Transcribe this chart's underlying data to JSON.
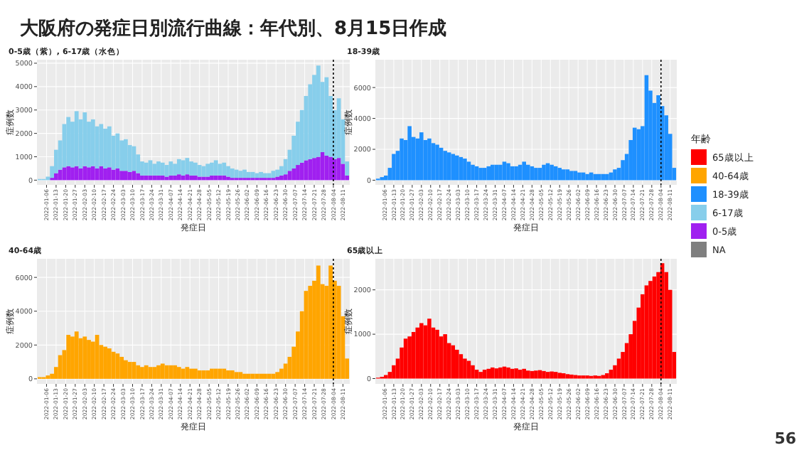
{
  "chart_data": [
    {
      "type": "bar",
      "title": "大阪府の発症日別流行曲線：年代別、8月15日作成",
      "subtitle": "0-5歳（紫）, 6-17歳（水色）",
      "xlabel": "発症日",
      "ylabel": "症例数",
      "grid": true,
      "x": [
        "2022-01-01",
        "2022-01-04",
        "2022-01-07",
        "2022-01-10",
        "2022-01-13",
        "2022-01-16",
        "2022-01-19",
        "2022-01-22",
        "2022-01-25",
        "2022-01-28",
        "2022-01-31",
        "2022-02-03",
        "2022-02-06",
        "2022-02-09",
        "2022-02-12",
        "2022-02-15",
        "2022-02-18",
        "2022-02-21",
        "2022-02-24",
        "2022-02-27",
        "2022-03-02",
        "2022-03-05",
        "2022-03-08",
        "2022-03-11",
        "2022-03-14",
        "2022-03-17",
        "2022-03-20",
        "2022-03-23",
        "2022-03-26",
        "2022-03-29",
        "2022-04-01",
        "2022-04-04",
        "2022-04-07",
        "2022-04-10",
        "2022-04-13",
        "2022-04-16",
        "2022-04-19",
        "2022-04-22",
        "2022-04-25",
        "2022-04-28",
        "2022-05-01",
        "2022-05-04",
        "2022-05-07",
        "2022-05-10",
        "2022-05-13",
        "2022-05-16",
        "2022-05-19",
        "2022-05-22",
        "2022-05-25",
        "2022-05-28",
        "2022-05-31",
        "2022-06-03",
        "2022-06-06",
        "2022-06-09",
        "2022-06-12",
        "2022-06-15",
        "2022-06-18",
        "2022-06-21",
        "2022-06-24",
        "2022-06-27",
        "2022-06-30",
        "2022-07-03",
        "2022-07-06",
        "2022-07-09",
        "2022-07-12",
        "2022-07-15",
        "2022-07-18",
        "2022-07-21",
        "2022-07-24",
        "2022-07-27",
        "2022-07-30",
        "2022-08-02",
        "2022-08-05",
        "2022-08-08",
        "2022-08-11",
        "2022-08-14"
      ],
      "xlim": [
        "2021-12-30",
        "2022-08-16"
      ],
      "xticks": [
        "2022-01-06",
        "2022-01-13",
        "2022-01-20",
        "2022-01-27",
        "2022-02-03",
        "2022-02-10",
        "2022-02-17",
        "2022-02-24",
        "2022-03-03",
        "2022-03-10",
        "2022-03-17",
        "2022-03-24",
        "2022-03-31",
        "2022-04-07",
        "2022-04-14",
        "2022-04-21",
        "2022-04-28",
        "2022-05-05",
        "2022-05-12",
        "2022-05-19",
        "2022-05-26",
        "2022-06-02",
        "2022-06-09",
        "2022-06-16",
        "2022-06-23",
        "2022-06-30",
        "2022-07-07",
        "2022-07-14",
        "2022-07-21",
        "2022-07-28",
        "2022-08-04",
        "2022-08-11"
      ],
      "ylim": [
        -200,
        5150
      ],
      "yticks": [
        0,
        1000,
        2000,
        3000,
        4000,
        5000
      ],
      "stacked": true,
      "ref_lines": [
        {
          "axis": "x",
          "value": "2022-08-04",
          "color": "#000000",
          "line_style": "dotted"
        }
      ],
      "series": [
        {
          "color": "#a020f0",
          "values": [
            0,
            0,
            0,
            100,
            300,
            450,
            550,
            600,
            550,
            600,
            500,
            600,
            550,
            600,
            500,
            600,
            500,
            550,
            450,
            500,
            400,
            400,
            350,
            400,
            300,
            200,
            200,
            200,
            200,
            200,
            200,
            150,
            200,
            200,
            250,
            200,
            250,
            200,
            200,
            150,
            150,
            150,
            200,
            200,
            200,
            200,
            150,
            100,
            100,
            100,
            100,
            100,
            100,
            100,
            100,
            100,
            100,
            100,
            150,
            200,
            250,
            400,
            500,
            650,
            750,
            850,
            900,
            950,
            1000,
            1200,
            1050,
            1000,
            900,
            950,
            700,
            200
          ]
        },
        {
          "color": "#87ceeb",
          "values": [
            50,
            50,
            150,
            500,
            1000,
            1250,
            1850,
            2100,
            1950,
            2350,
            2100,
            2300,
            1950,
            2000,
            1800,
            1800,
            1700,
            1750,
            1450,
            1500,
            1300,
            1350,
            1150,
            1050,
            800,
            600,
            550,
            650,
            500,
            600,
            550,
            500,
            600,
            500,
            650,
            650,
            700,
            600,
            550,
            500,
            450,
            550,
            550,
            650,
            500,
            550,
            450,
            400,
            350,
            300,
            350,
            250,
            250,
            200,
            250,
            200,
            200,
            300,
            300,
            400,
            650,
            900,
            1400,
            1850,
            2250,
            2750,
            3200,
            3550,
            3900,
            3000,
            3350,
            2600,
            2100,
            2550,
            1900,
            600
          ]
        }
      ]
    },
    {
      "type": "bar",
      "subtitle": "18-39歳",
      "xlabel": "発症日",
      "ylabel": "症例数",
      "grid": true,
      "x": [
        "2022-01-01",
        "2022-01-04",
        "2022-01-07",
        "2022-01-10",
        "2022-01-13",
        "2022-01-16",
        "2022-01-19",
        "2022-01-22",
        "2022-01-25",
        "2022-01-28",
        "2022-01-31",
        "2022-02-03",
        "2022-02-06",
        "2022-02-09",
        "2022-02-12",
        "2022-02-15",
        "2022-02-18",
        "2022-02-21",
        "2022-02-24",
        "2022-02-27",
        "2022-03-02",
        "2022-03-05",
        "2022-03-08",
        "2022-03-11",
        "2022-03-14",
        "2022-03-17",
        "2022-03-20",
        "2022-03-23",
        "2022-03-26",
        "2022-03-29",
        "2022-04-01",
        "2022-04-04",
        "2022-04-07",
        "2022-04-10",
        "2022-04-13",
        "2022-04-16",
        "2022-04-19",
        "2022-04-22",
        "2022-04-25",
        "2022-04-28",
        "2022-05-01",
        "2022-05-04",
        "2022-05-07",
        "2022-05-10",
        "2022-05-13",
        "2022-05-16",
        "2022-05-19",
        "2022-05-22",
        "2022-05-25",
        "2022-05-28",
        "2022-05-31",
        "2022-06-03",
        "2022-06-06",
        "2022-06-09",
        "2022-06-12",
        "2022-06-15",
        "2022-06-18",
        "2022-06-21",
        "2022-06-24",
        "2022-06-27",
        "2022-06-30",
        "2022-07-03",
        "2022-07-06",
        "2022-07-09",
        "2022-07-12",
        "2022-07-15",
        "2022-07-18",
        "2022-07-21",
        "2022-07-24",
        "2022-07-27",
        "2022-07-30",
        "2022-08-02",
        "2022-08-05",
        "2022-08-08",
        "2022-08-11",
        "2022-08-14"
      ],
      "xlim": [
        "2021-12-30",
        "2022-08-16"
      ],
      "xticks": [
        "2022-01-06",
        "2022-01-13",
        "2022-01-20",
        "2022-01-27",
        "2022-02-03",
        "2022-02-10",
        "2022-02-17",
        "2022-02-24",
        "2022-03-03",
        "2022-03-10",
        "2022-03-17",
        "2022-03-24",
        "2022-03-31",
        "2022-04-07",
        "2022-04-14",
        "2022-04-21",
        "2022-04-28",
        "2022-05-05",
        "2022-05-12",
        "2022-05-19",
        "2022-05-26",
        "2022-06-02",
        "2022-06-09",
        "2022-06-16",
        "2022-06-23",
        "2022-06-30",
        "2022-07-07",
        "2022-07-14",
        "2022-07-21",
        "2022-07-28",
        "2022-08-04",
        "2022-08-11"
      ],
      "ylim": [
        -300,
        7800
      ],
      "yticks": [
        0,
        2000,
        4000,
        6000
      ],
      "ref_lines": [
        {
          "axis": "x",
          "value": "2022-08-04",
          "color": "#000000",
          "line_style": "dotted"
        }
      ],
      "series": [
        {
          "color": "#1e90ff",
          "values": [
            100,
            200,
            300,
            800,
            1700,
            1900,
            2700,
            2600,
            3500,
            2800,
            2700,
            3100,
            2600,
            2700,
            2400,
            2300,
            2100,
            1900,
            1800,
            1700,
            1600,
            1500,
            1400,
            1200,
            1000,
            900,
            800,
            800,
            900,
            1000,
            1000,
            1000,
            1200,
            1100,
            900,
            900,
            1000,
            1200,
            1000,
            900,
            800,
            800,
            1000,
            1100,
            1000,
            900,
            800,
            700,
            700,
            600,
            600,
            500,
            500,
            400,
            500,
            400,
            400,
            400,
            400,
            500,
            700,
            800,
            1300,
            1700,
            2600,
            3400,
            3300,
            3500,
            6800,
            5800,
            5000,
            5500,
            4800,
            4200,
            3000,
            800
          ]
        }
      ]
    },
    {
      "type": "bar",
      "subtitle": "40-64歳",
      "xlabel": "発症日",
      "ylabel": "症例数",
      "grid": true,
      "x": [
        "2022-01-01",
        "2022-01-04",
        "2022-01-07",
        "2022-01-10",
        "2022-01-13",
        "2022-01-16",
        "2022-01-19",
        "2022-01-22",
        "2022-01-25",
        "2022-01-28",
        "2022-01-31",
        "2022-02-03",
        "2022-02-06",
        "2022-02-09",
        "2022-02-12",
        "2022-02-15",
        "2022-02-18",
        "2022-02-21",
        "2022-02-24",
        "2022-02-27",
        "2022-03-02",
        "2022-03-05",
        "2022-03-08",
        "2022-03-11",
        "2022-03-14",
        "2022-03-17",
        "2022-03-20",
        "2022-03-23",
        "2022-03-26",
        "2022-03-29",
        "2022-04-01",
        "2022-04-04",
        "2022-04-07",
        "2022-04-10",
        "2022-04-13",
        "2022-04-16",
        "2022-04-19",
        "2022-04-22",
        "2022-04-25",
        "2022-04-28",
        "2022-05-01",
        "2022-05-04",
        "2022-05-07",
        "2022-05-10",
        "2022-05-13",
        "2022-05-16",
        "2022-05-19",
        "2022-05-22",
        "2022-05-25",
        "2022-05-28",
        "2022-05-31",
        "2022-06-03",
        "2022-06-06",
        "2022-06-09",
        "2022-06-12",
        "2022-06-15",
        "2022-06-18",
        "2022-06-21",
        "2022-06-24",
        "2022-06-27",
        "2022-06-30",
        "2022-07-03",
        "2022-07-06",
        "2022-07-09",
        "2022-07-12",
        "2022-07-15",
        "2022-07-18",
        "2022-07-21",
        "2022-07-24",
        "2022-07-27",
        "2022-07-30",
        "2022-08-02",
        "2022-08-05",
        "2022-08-08",
        "2022-08-11",
        "2022-08-14"
      ],
      "xlim": [
        "2021-12-30",
        "2022-08-16"
      ],
      "xticks": [
        "2022-01-06",
        "2022-01-13",
        "2022-01-20",
        "2022-01-27",
        "2022-02-03",
        "2022-02-10",
        "2022-02-17",
        "2022-02-24",
        "2022-03-03",
        "2022-03-10",
        "2022-03-17",
        "2022-03-24",
        "2022-03-31",
        "2022-04-07",
        "2022-04-14",
        "2022-04-21",
        "2022-04-28",
        "2022-05-05",
        "2022-05-12",
        "2022-05-19",
        "2022-05-26",
        "2022-06-02",
        "2022-06-09",
        "2022-06-16",
        "2022-06-23",
        "2022-06-30",
        "2022-07-07",
        "2022-07-14",
        "2022-07-21",
        "2022-07-28",
        "2022-08-04",
        "2022-08-11"
      ],
      "ylim": [
        -300,
        7100
      ],
      "yticks": [
        0,
        2000,
        4000,
        6000
      ],
      "ref_lines": [
        {
          "axis": "x",
          "value": "2022-08-04",
          "color": "#000000",
          "line_style": "dotted"
        }
      ],
      "series": [
        {
          "color": "#ffa500",
          "values": [
            100,
            100,
            200,
            300,
            700,
            1400,
            1700,
            2600,
            2500,
            2800,
            2400,
            2500,
            2300,
            2200,
            2600,
            2000,
            1900,
            1800,
            1600,
            1500,
            1300,
            1100,
            1000,
            1000,
            800,
            700,
            800,
            700,
            700,
            800,
            900,
            800,
            800,
            800,
            700,
            600,
            700,
            600,
            600,
            500,
            500,
            500,
            600,
            600,
            600,
            600,
            500,
            500,
            400,
            400,
            300,
            300,
            300,
            300,
            300,
            300,
            300,
            300,
            400,
            600,
            900,
            1300,
            1900,
            2800,
            4000,
            5200,
            5500,
            5800,
            6700,
            5600,
            5500,
            6700,
            5800,
            5500,
            3700,
            1200
          ]
        }
      ]
    },
    {
      "type": "bar",
      "subtitle": "65歳以上",
      "xlabel": "発症日",
      "ylabel": "症例数",
      "grid": true,
      "x": [
        "2022-01-01",
        "2022-01-04",
        "2022-01-07",
        "2022-01-10",
        "2022-01-13",
        "2022-01-16",
        "2022-01-19",
        "2022-01-22",
        "2022-01-25",
        "2022-01-28",
        "2022-01-31",
        "2022-02-03",
        "2022-02-06",
        "2022-02-09",
        "2022-02-12",
        "2022-02-15",
        "2022-02-18",
        "2022-02-21",
        "2022-02-24",
        "2022-02-27",
        "2022-03-02",
        "2022-03-05",
        "2022-03-08",
        "2022-03-11",
        "2022-03-14",
        "2022-03-17",
        "2022-03-20",
        "2022-03-23",
        "2022-03-26",
        "2022-03-29",
        "2022-04-01",
        "2022-04-04",
        "2022-04-07",
        "2022-04-10",
        "2022-04-13",
        "2022-04-16",
        "2022-04-19",
        "2022-04-22",
        "2022-04-25",
        "2022-04-28",
        "2022-05-01",
        "2022-05-04",
        "2022-05-07",
        "2022-05-10",
        "2022-05-13",
        "2022-05-16",
        "2022-05-19",
        "2022-05-22",
        "2022-05-25",
        "2022-05-28",
        "2022-05-31",
        "2022-06-03",
        "2022-06-06",
        "2022-06-09",
        "2022-06-12",
        "2022-06-15",
        "2022-06-18",
        "2022-06-21",
        "2022-06-24",
        "2022-06-27",
        "2022-06-30",
        "2022-07-03",
        "2022-07-06",
        "2022-07-09",
        "2022-07-12",
        "2022-07-15",
        "2022-07-18",
        "2022-07-21",
        "2022-07-24",
        "2022-07-27",
        "2022-07-30",
        "2022-08-02",
        "2022-08-05",
        "2022-08-08",
        "2022-08-11",
        "2022-08-14"
      ],
      "xlim": [
        "2021-12-30",
        "2022-08-16"
      ],
      "xticks": [
        "2022-01-06",
        "2022-01-13",
        "2022-01-20",
        "2022-01-27",
        "2022-02-03",
        "2022-02-10",
        "2022-02-17",
        "2022-02-24",
        "2022-03-03",
        "2022-03-10",
        "2022-03-17",
        "2022-03-24",
        "2022-03-31",
        "2022-04-07",
        "2022-04-14",
        "2022-04-21",
        "2022-04-28",
        "2022-05-05",
        "2022-05-12",
        "2022-05-19",
        "2022-05-26",
        "2022-06-02",
        "2022-06-09",
        "2022-06-16",
        "2022-06-23",
        "2022-06-30",
        "2022-07-07",
        "2022-07-14",
        "2022-07-21",
        "2022-07-28",
        "2022-08-04",
        "2022-08-11"
      ],
      "ylim": [
        -120,
        2700
      ],
      "yticks": [
        0,
        1000,
        2000
      ],
      "ref_lines": [
        {
          "axis": "x",
          "value": "2022-08-04",
          "color": "#000000",
          "line_style": "dotted"
        }
      ],
      "series": [
        {
          "color": "#ff0000",
          "values": [
            20,
            40,
            80,
            150,
            300,
            450,
            700,
            900,
            950,
            1050,
            1150,
            1250,
            1200,
            1350,
            1150,
            1100,
            950,
            1000,
            800,
            750,
            650,
            550,
            450,
            400,
            300,
            200,
            150,
            200,
            220,
            250,
            230,
            250,
            270,
            250,
            220,
            230,
            200,
            220,
            180,
            170,
            180,
            190,
            170,
            150,
            160,
            150,
            130,
            120,
            100,
            90,
            80,
            70,
            70,
            70,
            60,
            70,
            60,
            80,
            120,
            200,
            300,
            450,
            600,
            800,
            1000,
            1300,
            1600,
            1900,
            2100,
            2200,
            2300,
            2400,
            2600,
            2400,
            2000,
            600
          ]
        }
      ]
    },
    {
      "type": "other",
      "legend_title": "年齢",
      "legend": "right",
      "annotations": [
        "56"
      ],
      "series": [
        {
          "name": "65歳以上",
          "color": "#ff0000"
        },
        {
          "name": "40-64歳",
          "color": "#ffa500"
        },
        {
          "name": "18-39歳",
          "color": "#1e90ff"
        },
        {
          "name": "6-17歳",
          "color": "#87ceeb"
        },
        {
          "name": "0-5歳",
          "color": "#a020f0"
        },
        {
          "name": "NA",
          "color": "#7f7f7f"
        }
      ]
    }
  ]
}
